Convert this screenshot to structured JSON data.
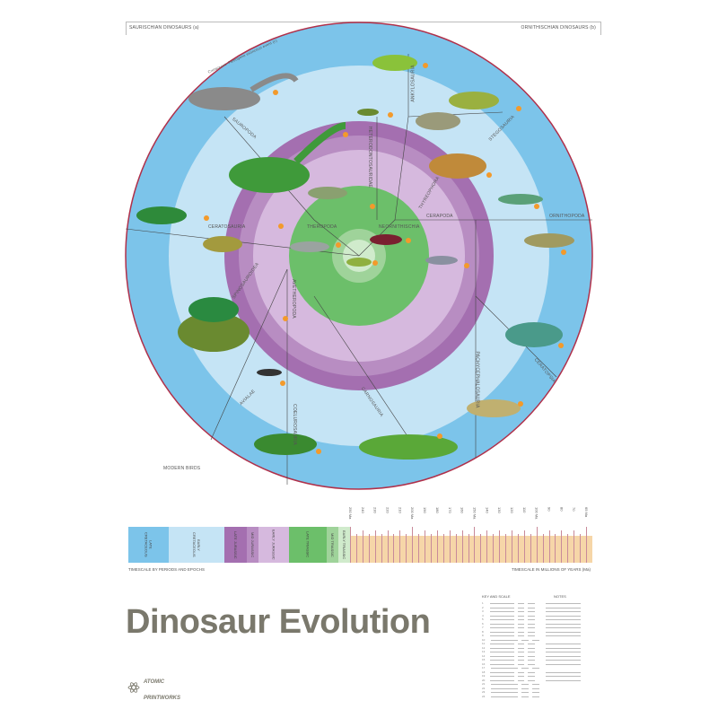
{
  "header": {
    "left": "SAURISCHIAN DINOSAURS (a)",
    "right": "ORNITHISCHIAN DINOSAURS (b)",
    "arc_note": "Cretaceous–Paleogene extinction event (c)"
  },
  "clades": [
    "SAUROPODA",
    "CERATOSAURIA",
    "THEROPODA",
    "SPINOSAUROIDEA",
    "AVETHEROPODA",
    "AVIALAE",
    "COELUROSAURIA",
    "CARNOSAURIA",
    "MODERN BIRDS",
    "HETERODONTOSAURIDAE",
    "ANKYLOSAURIA",
    "STEGOSAURIA",
    "THYREOPHORA",
    "NEORNITHISCHIA",
    "CERAPODA",
    "ORNITHOPODA",
    "CERATOPSIA",
    "PACHYCEPHALOSAURIA"
  ],
  "colors": {
    "late_cretaceous": "#7cc4ea",
    "early_cretaceous": "#c5e4f5",
    "late_jurassic": "#a46fb0",
    "mid_jurassic": "#b88dc2",
    "early_jurassic": "#d6b9de",
    "late_triassic": "#6cbf6a",
    "mid_triassic": "#9fd39a",
    "early_triassic": "#d0ebcc",
    "outline": "#b0304a",
    "ruler": "#f6d6a8",
    "marker": "#f39a2b"
  },
  "timescale": {
    "periods": [
      "LATE CRETACEOUS",
      "EARLY CRETACEOUS",
      "LATE JURASSIC",
      "MID JURASSIC",
      "EARLY JURASSIC",
      "LATE TRIASSIC",
      "MID TRIASSIC",
      "EARLY TRIASSIC"
    ],
    "ticks": [
      "250 Ma",
      "240",
      "230",
      "220",
      "210",
      "200 Ma",
      "190",
      "180",
      "170",
      "160",
      "150 Ma",
      "140",
      "130",
      "120",
      "110",
      "100 Ma",
      "90",
      "80",
      "70",
      "65 Ma"
    ],
    "left_caption": "TIMESCALE BY PERIODS AND EPOCHS",
    "right_caption": "TIMESCALE IN MILLIONS OF YEARS (Ma)"
  },
  "title": "Dinosaur Evolution",
  "brand": {
    "line1": "ATOMIC",
    "line2": "PRINTWORKS"
  },
  "key": {
    "heading": "KEY AND SCALE",
    "notes_heading": "NOTES",
    "rows": [
      "1",
      "2",
      "3",
      "4",
      "5",
      "6",
      "7",
      "8",
      "9",
      "10",
      "11",
      "12",
      "13",
      "14",
      "15",
      "16",
      "17",
      "18",
      "19",
      "20",
      "21",
      "22",
      "23",
      "24"
    ]
  }
}
